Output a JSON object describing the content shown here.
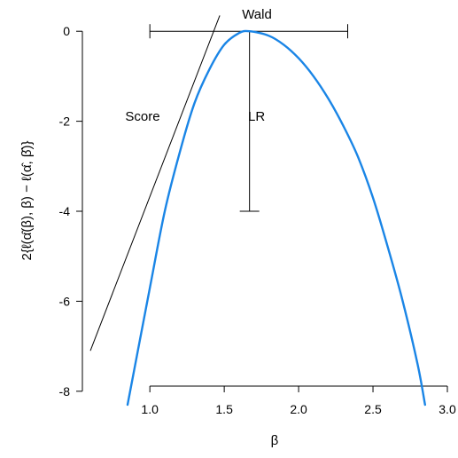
{
  "chart_data": {
    "type": "line",
    "xlabel": "β",
    "ylabel": "2{ℓ(α̂(β), β) − ℓ(α̂, β̂)}",
    "xlim": [
      0.6,
      3.0
    ],
    "ylim": [
      -8.3,
      0.3
    ],
    "x_ticks": [
      "1.0",
      "1.5",
      "2.0",
      "2.5",
      "3.0"
    ],
    "y_ticks": [
      "0",
      "-2",
      "-4",
      "-6",
      "-8"
    ],
    "colors": {
      "curve": "#1a85e6",
      "lines": "#000000"
    },
    "series": [
      {
        "x": [
          0.85,
          1.0,
          1.1,
          1.2,
          1.3,
          1.4,
          1.5,
          1.6,
          1.67,
          1.8,
          1.9,
          2.0,
          2.1,
          2.2,
          2.3,
          2.4,
          2.5,
          2.6,
          2.7,
          2.8,
          2.85
        ],
        "y": [
          -8.3,
          -5.7,
          -4.0,
          -2.7,
          -1.6,
          -0.85,
          -0.3,
          -0.04,
          0.0,
          -0.1,
          -0.3,
          -0.6,
          -1.0,
          -1.5,
          -2.1,
          -2.8,
          -3.7,
          -4.8,
          -6.0,
          -7.4,
          -8.3
        ]
      }
    ],
    "score_tangent": {
      "x": [
        0.6,
        1.47
      ],
      "y": [
        -7.1,
        0.35
      ]
    },
    "annotations": {
      "wald_label": "Wald",
      "score_label": "Score",
      "lr_label": "LR",
      "wald_interval": {
        "x_low": 1.0,
        "x_high": 2.33,
        "y": 0.0
      },
      "lr_interval": {
        "x": 1.67,
        "y_top": 0.0,
        "y_bottom": -4.0
      }
    },
    "grid": false,
    "legend": "none"
  }
}
